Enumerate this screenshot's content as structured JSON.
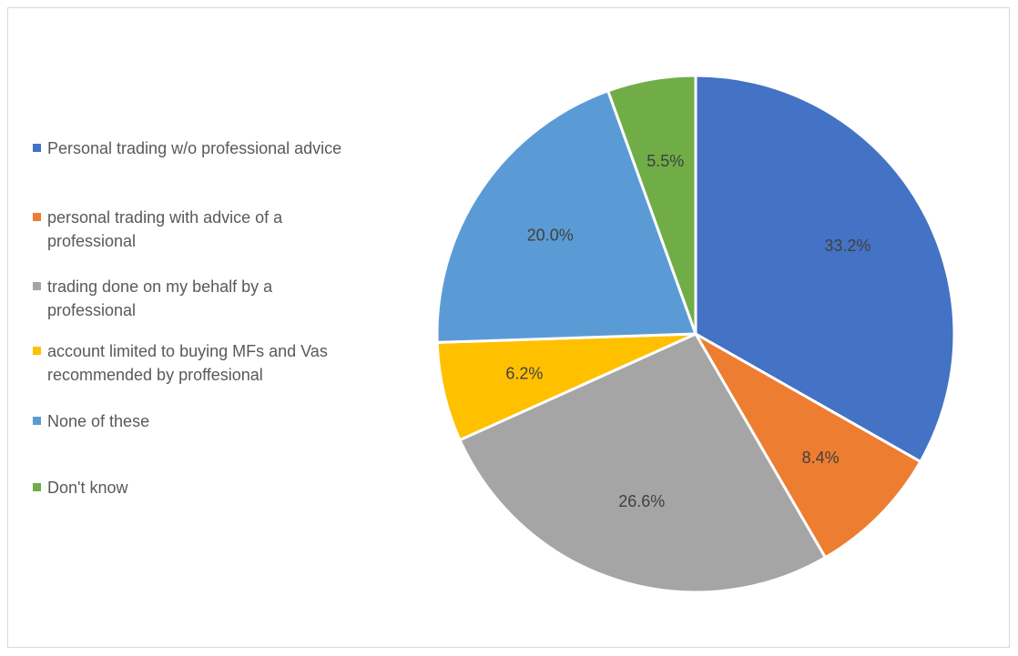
{
  "chart_data": {
    "type": "pie",
    "title": "",
    "categories": [
      "Personal trading w/o professional advice",
      "personal trading with advice of a professional",
      "trading done on my behalf by a professional",
      "account limited to buying MFs and Vas recommended by proffesional",
      "None of these",
      "Don't know"
    ],
    "values": [
      33.2,
      8.4,
      26.6,
      6.2,
      20.0,
      5.5
    ],
    "value_labels": [
      "33.2%",
      "8.4%",
      "26.6%",
      "6.2%",
      "20.0%",
      "5.5%"
    ],
    "colors": [
      "#4472C4",
      "#ED7D31",
      "#A5A5A5",
      "#FFC000",
      "#5B9BD5",
      "#70AD47"
    ],
    "legend_position": "left",
    "start_angle": "12 o'clock",
    "direction": "clockwise"
  },
  "legend": {
    "items": [
      {
        "label": "Personal trading w/o professional advice",
        "color": "#4472C4"
      },
      {
        "label": "personal trading with advice of a professional",
        "color": "#ED7D31"
      },
      {
        "label": "trading done on my behalf by a professional",
        "color": "#A5A5A5"
      },
      {
        "label": "account limited to buying MFs and Vas recommended by proffesional",
        "color": "#FFC000"
      },
      {
        "label": "None of these",
        "color": "#5B9BD5"
      },
      {
        "label": "Don't know",
        "color": "#70AD47"
      }
    ]
  }
}
